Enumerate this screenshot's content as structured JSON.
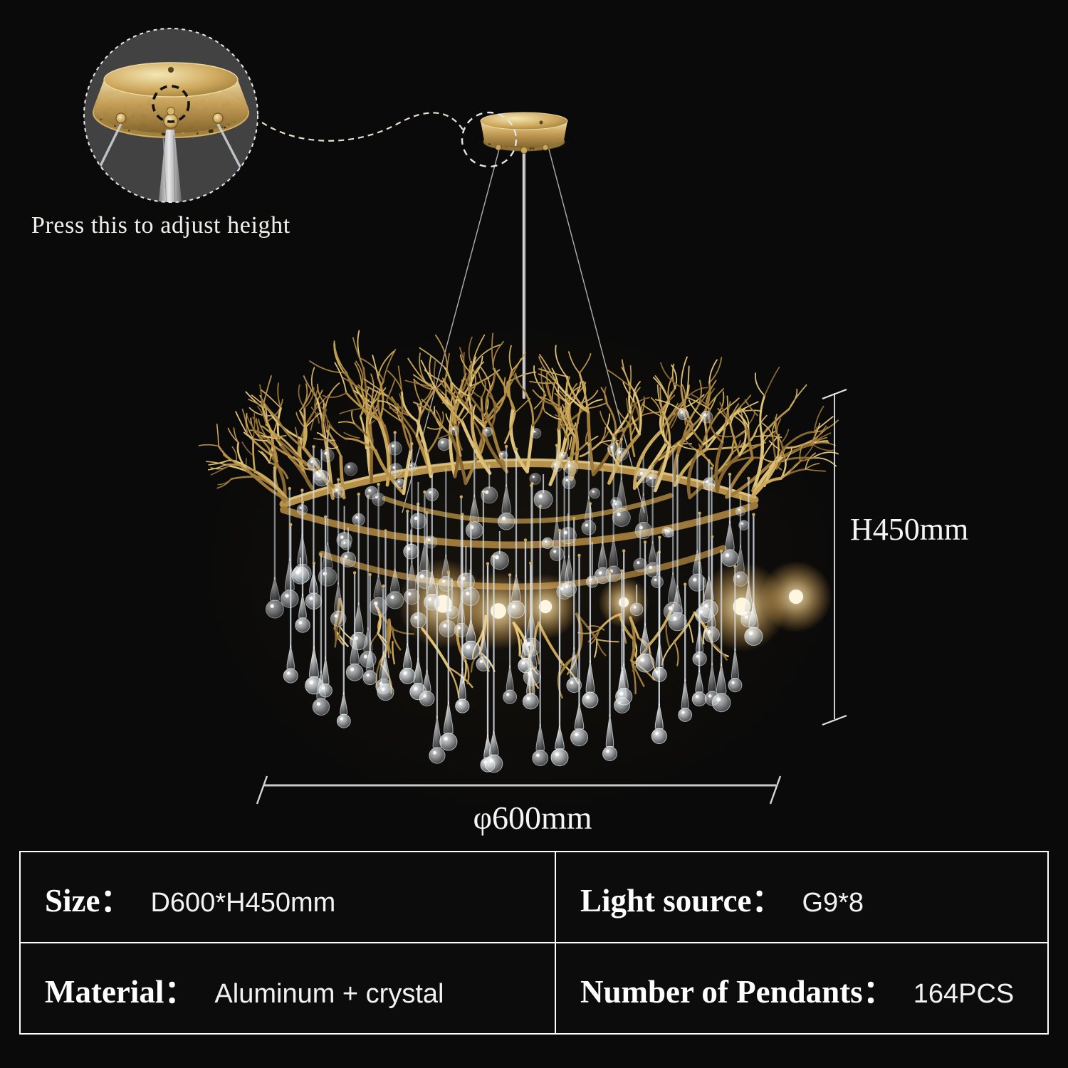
{
  "caption": {
    "adjust_height": "Press this to adjust height"
  },
  "dimension_labels": {
    "height": "H450mm",
    "diameter": "φ600mm"
  },
  "spec_table": {
    "rows": [
      [
        {
          "label": "Size：",
          "value": "D600*H450mm"
        },
        {
          "label": "Light source：",
          "value": "G9*8"
        }
      ],
      [
        {
          "label": "Material：",
          "value": "Aluminum + crystal"
        },
        {
          "label": "Number of Pendants：",
          "value": "164PCS"
        }
      ]
    ]
  },
  "colors": {
    "background": "#0a0a0a",
    "inset_background": "#424242",
    "gold": "#bf9a4e",
    "gold_light": "#e2c887",
    "gold_dark": "#7c5f2c",
    "crystal": "#dfe5ea",
    "glow": "#ffd98f",
    "dimension_line": "#dedede",
    "table_border": "#ffffff",
    "text": "#f3f3f3"
  }
}
